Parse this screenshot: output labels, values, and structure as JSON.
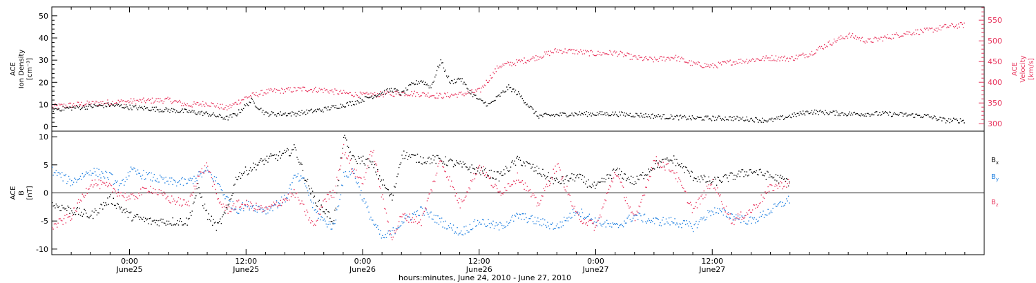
{
  "colors": {
    "black": "#000000",
    "bx": "#000000",
    "by": "#1e7fe0",
    "bz": "#e8335c",
    "velocity": "#e8335c"
  },
  "chart_data": [
    {
      "type": "scatter",
      "panel": "top",
      "ylabel_lines": [
        "ACE",
        "Ion Density",
        "[cm⁻³]"
      ],
      "ylim": [
        -2,
        54
      ],
      "yticks": [
        0,
        10,
        20,
        30,
        40,
        50
      ],
      "y2label_lines": [
        "ACE",
        "Velocity",
        "[km/s]"
      ],
      "y2lim": [
        282,
        582
      ],
      "y2ticks": [
        300,
        350,
        400,
        450,
        500,
        550
      ],
      "xlim": [
        -8,
        88
      ],
      "series": [
        {
          "name": "Density",
          "axis": "left",
          "x": [
            -8,
            -5,
            -2,
            0,
            3,
            6,
            8,
            9,
            10,
            11,
            12,
            12.5,
            14,
            17,
            20,
            23,
            25,
            27,
            28,
            29,
            30,
            31,
            32,
            33,
            34,
            35,
            36,
            37,
            38,
            39,
            40,
            42,
            46,
            50,
            54,
            58,
            62,
            66,
            70,
            74,
            78,
            82,
            84,
            86
          ],
          "y": [
            8,
            9,
            10,
            9,
            8,
            7,
            6,
            5,
            4,
            6,
            10,
            12,
            6,
            6,
            8,
            11,
            14,
            17,
            15,
            19,
            21,
            18,
            30,
            20,
            22,
            16,
            12,
            10,
            14,
            18,
            15,
            5,
            6,
            6,
            5,
            4,
            4,
            3,
            7,
            6,
            6,
            5,
            3,
            3
          ]
        },
        {
          "name": "Velocity",
          "axis": "right",
          "x": [
            -8,
            -4,
            0,
            4,
            6,
            8,
            10,
            12,
            14,
            18,
            20,
            22,
            24,
            26,
            28,
            30,
            32,
            34,
            36,
            38,
            40,
            42,
            44,
            46,
            48,
            50,
            52,
            54,
            56,
            58,
            60,
            62,
            64,
            66,
            68,
            70,
            72,
            74,
            76,
            78,
            80,
            82,
            84,
            86
          ],
          "y": [
            342,
            350,
            355,
            358,
            346,
            350,
            338,
            365,
            378,
            385,
            382,
            375,
            370,
            372,
            375,
            373,
            368,
            372,
            380,
            440,
            450,
            462,
            478,
            475,
            470,
            472,
            460,
            455,
            462,
            445,
            440,
            450,
            455,
            460,
            458,
            470,
            495,
            515,
            500,
            510,
            520,
            525,
            535,
            540
          ]
        }
      ]
    },
    {
      "type": "scatter",
      "panel": "bottom",
      "ylabel_lines": [
        "ACE",
        "B",
        "[nT]"
      ],
      "ylim": [
        -11,
        11
      ],
      "yticks": [
        -10,
        -5,
        0,
        5,
        10
      ],
      "xlabel": "hours:minutes, June 24, 2010 - June 27, 2010",
      "xlim": [
        -8,
        88
      ],
      "x_ticks": [
        {
          "x": 0,
          "label": "0:00",
          "sublabel": "June25"
        },
        {
          "x": 12,
          "label": "12:00",
          "sublabel": "June25"
        },
        {
          "x": 24,
          "label": "0:00",
          "sublabel": "June26"
        },
        {
          "x": 36,
          "label": "12:00",
          "sublabel": "June26"
        },
        {
          "x": 48,
          "label": "0:00",
          "sublabel": "June27"
        },
        {
          "x": 60,
          "label": "12:00",
          "sublabel": "June27"
        }
      ],
      "legend": [
        {
          "label": "B",
          "sub": "x",
          "color": "#000000"
        },
        {
          "label": "B",
          "sub": "y",
          "color": "#1e7fe0"
        },
        {
          "label": "B",
          "sub": "z",
          "color": "#e8335c"
        }
      ],
      "series": [
        {
          "name": "Bx",
          "x": [
            -8,
            -6,
            -4,
            -2,
            0,
            2,
            4,
            6,
            7,
            8,
            9,
            10,
            11,
            12,
            14,
            16,
            17,
            18,
            19,
            20,
            21,
            22,
            23,
            24,
            25,
            26,
            27,
            28,
            30,
            32,
            34,
            36,
            38,
            40,
            42,
            44,
            46,
            48,
            50,
            52,
            54,
            56,
            58,
            60,
            62,
            64,
            66,
            68
          ],
          "y": [
            -2,
            -3,
            -4,
            -1,
            -4,
            -5,
            -5,
            -5,
            1,
            -4,
            -6,
            -3,
            3,
            4,
            6,
            7,
            8,
            3,
            -1,
            -3,
            -5,
            10,
            6,
            6,
            5,
            2,
            -1,
            7,
            6,
            6,
            5,
            4,
            3,
            6,
            4,
            2,
            3,
            1,
            4,
            2,
            5,
            6,
            3,
            2,
            3,
            4,
            3,
            2
          ]
        },
        {
          "name": "By",
          "x": [
            -8,
            -6,
            -4,
            -2,
            -1,
            0,
            2,
            4,
            6,
            7,
            8,
            9,
            10,
            11,
            12,
            14,
            16,
            17,
            18,
            19,
            20,
            21,
            22,
            23,
            24,
            25,
            26,
            27,
            28,
            30,
            32,
            34,
            36,
            38,
            40,
            42,
            44,
            46,
            48,
            50,
            52,
            54,
            56,
            58,
            60,
            62,
            64,
            66,
            68
          ],
          "y": [
            4,
            2,
            4,
            3,
            1,
            4,
            3,
            2,
            2,
            3,
            4,
            2,
            -1,
            -3,
            -2,
            -3,
            -1,
            3,
            2,
            -3,
            -5,
            -6,
            3,
            4,
            -1,
            -5,
            -8,
            -7,
            -5,
            -3,
            -5,
            -7,
            -5,
            -6,
            -4,
            -5,
            -6,
            -3,
            -5,
            -6,
            -4,
            -5,
            -5,
            -6,
            -3,
            -4,
            -5,
            -3,
            -1
          ]
        },
        {
          "name": "Bz",
          "x": [
            -8,
            -6,
            -4,
            -2,
            0,
            2,
            4,
            6,
            7,
            8,
            9,
            10,
            11,
            12,
            14,
            16,
            17,
            18,
            19,
            20,
            21,
            22,
            23,
            24,
            25,
            26,
            27,
            28,
            30,
            32,
            34,
            36,
            38,
            40,
            42,
            44,
            46,
            48,
            50,
            52,
            54,
            56,
            58,
            60,
            62,
            64,
            66,
            68
          ],
          "y": [
            -6,
            -4,
            2,
            1,
            -1,
            1,
            -1,
            -2,
            3,
            5,
            -1,
            -3,
            -2,
            -2,
            -3,
            -1,
            0,
            -3,
            -6,
            -1,
            0,
            8,
            4,
            2,
            8,
            -1,
            -8,
            -4,
            -5,
            6,
            -2,
            5,
            0,
            3,
            -2,
            5,
            -4,
            -6,
            4,
            -5,
            6,
            4,
            -3,
            2,
            -5,
            -3,
            1,
            2
          ]
        }
      ]
    }
  ]
}
